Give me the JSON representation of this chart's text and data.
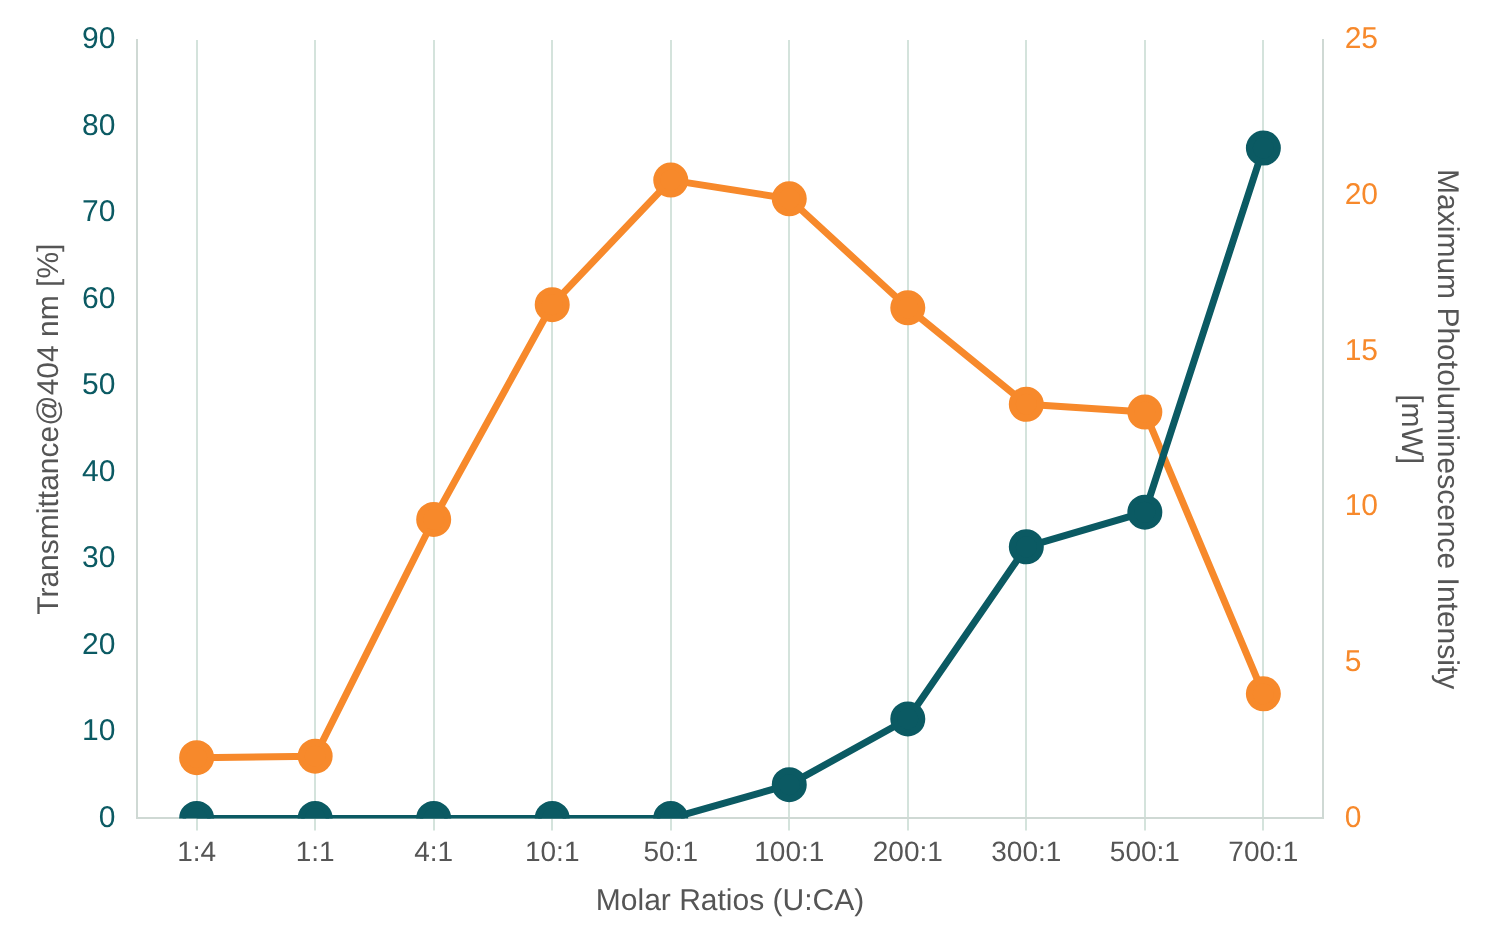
{
  "chart_data": {
    "type": "line",
    "xlabel": "Molar Ratios (U:CA)",
    "ylabel": "Transmittance@404 nm [%]",
    "y2label": "Maximum Photoluminescence Intensity [mW]",
    "categories": [
      "1:4",
      "1:1",
      "4:1",
      "10:1",
      "50:1",
      "100:1",
      "200:1",
      "300:1",
      "500:1",
      "700:1"
    ],
    "series": [
      {
        "color": "#0b5a63",
        "values": [
          0,
          0,
          0,
          0,
          0,
          3.9,
          11.5,
          31.4,
          35.4,
          77.5
        ]
      },
      {
        "color": "#f7892b",
        "axis": "y2",
        "values": [
          1.95,
          2.0,
          9.6,
          16.5,
          20.5,
          19.9,
          16.4,
          13.3,
          13.05,
          4.0
        ]
      }
    ],
    "ylim": [
      0,
      90
    ],
    "yticks": [
      0,
      10,
      20,
      30,
      40,
      50,
      60,
      70,
      80,
      90
    ],
    "y2lim": [
      0,
      25
    ],
    "y2ticks": [
      0,
      5,
      10,
      15,
      20,
      25
    ],
    "grid": "x",
    "legend": false,
    "marker": "circle",
    "line_style": "solid"
  }
}
